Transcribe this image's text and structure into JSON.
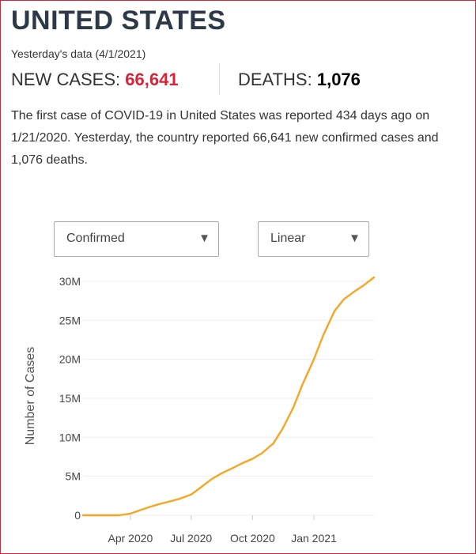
{
  "header": {
    "title": "UNITED STATES",
    "subtitle": "Yesterday's data (4/1/2021)"
  },
  "stats": {
    "new_cases_label": "NEW CASES:",
    "new_cases_value": "66,641",
    "deaths_label": "DEATHS:",
    "deaths_value": "1,076"
  },
  "description": "The first case of COVID-19 in United States was reported 434 days ago on 1/21/2020. Yesterday, the country reported 66,641 new confirmed cases and 1,076 deaths.",
  "controls": {
    "metric_select": "Confirmed",
    "scale_select": "Linear"
  },
  "colors": {
    "accent": "#d6243a",
    "line": "#f5a623",
    "title": "#2c3a47"
  },
  "chart_data": {
    "type": "line",
    "title": "",
    "xlabel": "",
    "ylabel": "Number of Cases",
    "y_tick_labels": [
      "0",
      "5M",
      "10M",
      "15M",
      "20M",
      "25M",
      "30M"
    ],
    "y_ticks": [
      0,
      5000000,
      10000000,
      15000000,
      20000000,
      25000000,
      30000000
    ],
    "x_tick_labels": [
      "Apr 2020",
      "Jul 2020",
      "Oct 2020",
      "Jan 2021"
    ],
    "x_ticks": [
      "2020-04-01",
      "2020-07-01",
      "2020-10-01",
      "2021-01-01"
    ],
    "xlim": [
      "2020-01-21",
      "2021-04-01"
    ],
    "ylim": [
      0,
      30500000
    ],
    "grid": true,
    "series": [
      {
        "name": "",
        "color": "#f5a623",
        "x": [
          "2020-01-21",
          "2020-03-01",
          "2020-03-15",
          "2020-04-01",
          "2020-04-15",
          "2020-05-01",
          "2020-05-15",
          "2020-06-01",
          "2020-06-15",
          "2020-07-01",
          "2020-07-15",
          "2020-08-01",
          "2020-08-15",
          "2020-09-01",
          "2020-09-15",
          "2020-10-01",
          "2020-10-15",
          "2020-11-01",
          "2020-11-15",
          "2020-12-01",
          "2020-12-15",
          "2021-01-01",
          "2021-01-15",
          "2021-02-01",
          "2021-02-15",
          "2021-03-01",
          "2021-03-15",
          "2021-04-01"
        ],
        "values": [
          0,
          30,
          3500,
          215000,
          640000,
          1100000,
          1450000,
          1810000,
          2150000,
          2650000,
          3550000,
          4650000,
          5350000,
          6050000,
          6650000,
          7250000,
          7950000,
          9200000,
          11100000,
          13800000,
          16800000,
          20000000,
          23100000,
          26200000,
          27700000,
          28600000,
          29400000,
          30500000
        ]
      }
    ]
  }
}
